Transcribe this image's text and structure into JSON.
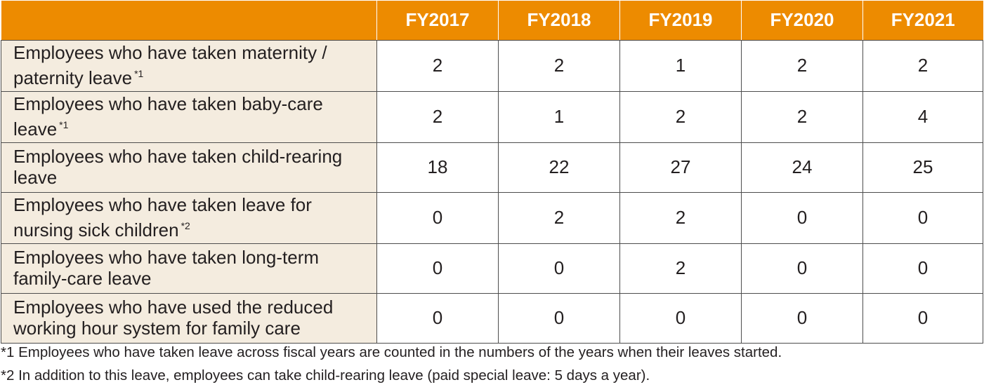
{
  "columns": [
    "FY2017",
    "FY2018",
    "FY2019",
    "FY2020",
    "FY2021"
  ],
  "rows": [
    {
      "label": "Employees who have taken maternity / paternity leave",
      "note": "*1",
      "values": [
        "2",
        "2",
        "1",
        "2",
        "2"
      ]
    },
    {
      "label": "Employees who have taken baby-care leave",
      "note": "*1",
      "values": [
        "2",
        "1",
        "2",
        "2",
        "4"
      ]
    },
    {
      "label": "Employees who have taken child-rearing leave",
      "note": "",
      "values": [
        "18",
        "22",
        "27",
        "24",
        "25"
      ]
    },
    {
      "label": "Employees who have taken leave for nursing sick children",
      "note": "*2",
      "values": [
        "0",
        "2",
        "2",
        "0",
        "0"
      ]
    },
    {
      "label": "Employees who have taken long-term family-care leave",
      "note": "",
      "values": [
        "0",
        "0",
        "2",
        "0",
        "0"
      ]
    },
    {
      "label": "Employees who have used the reduced working hour system for family care",
      "note": "",
      "values": [
        "0",
        "0",
        "0",
        "0",
        "0"
      ]
    }
  ],
  "footnotes": [
    "*1 Employees who have taken leave across fiscal years are counted in the numbers of the years when their leaves started.",
    "*2 In addition to this leave, employees can take child-rearing leave (paid special leave: 5 days a year)."
  ],
  "colors": {
    "header_bg": "#ed8b00",
    "label_bg": "#f4ecdf",
    "border": "#4d4d4d"
  }
}
